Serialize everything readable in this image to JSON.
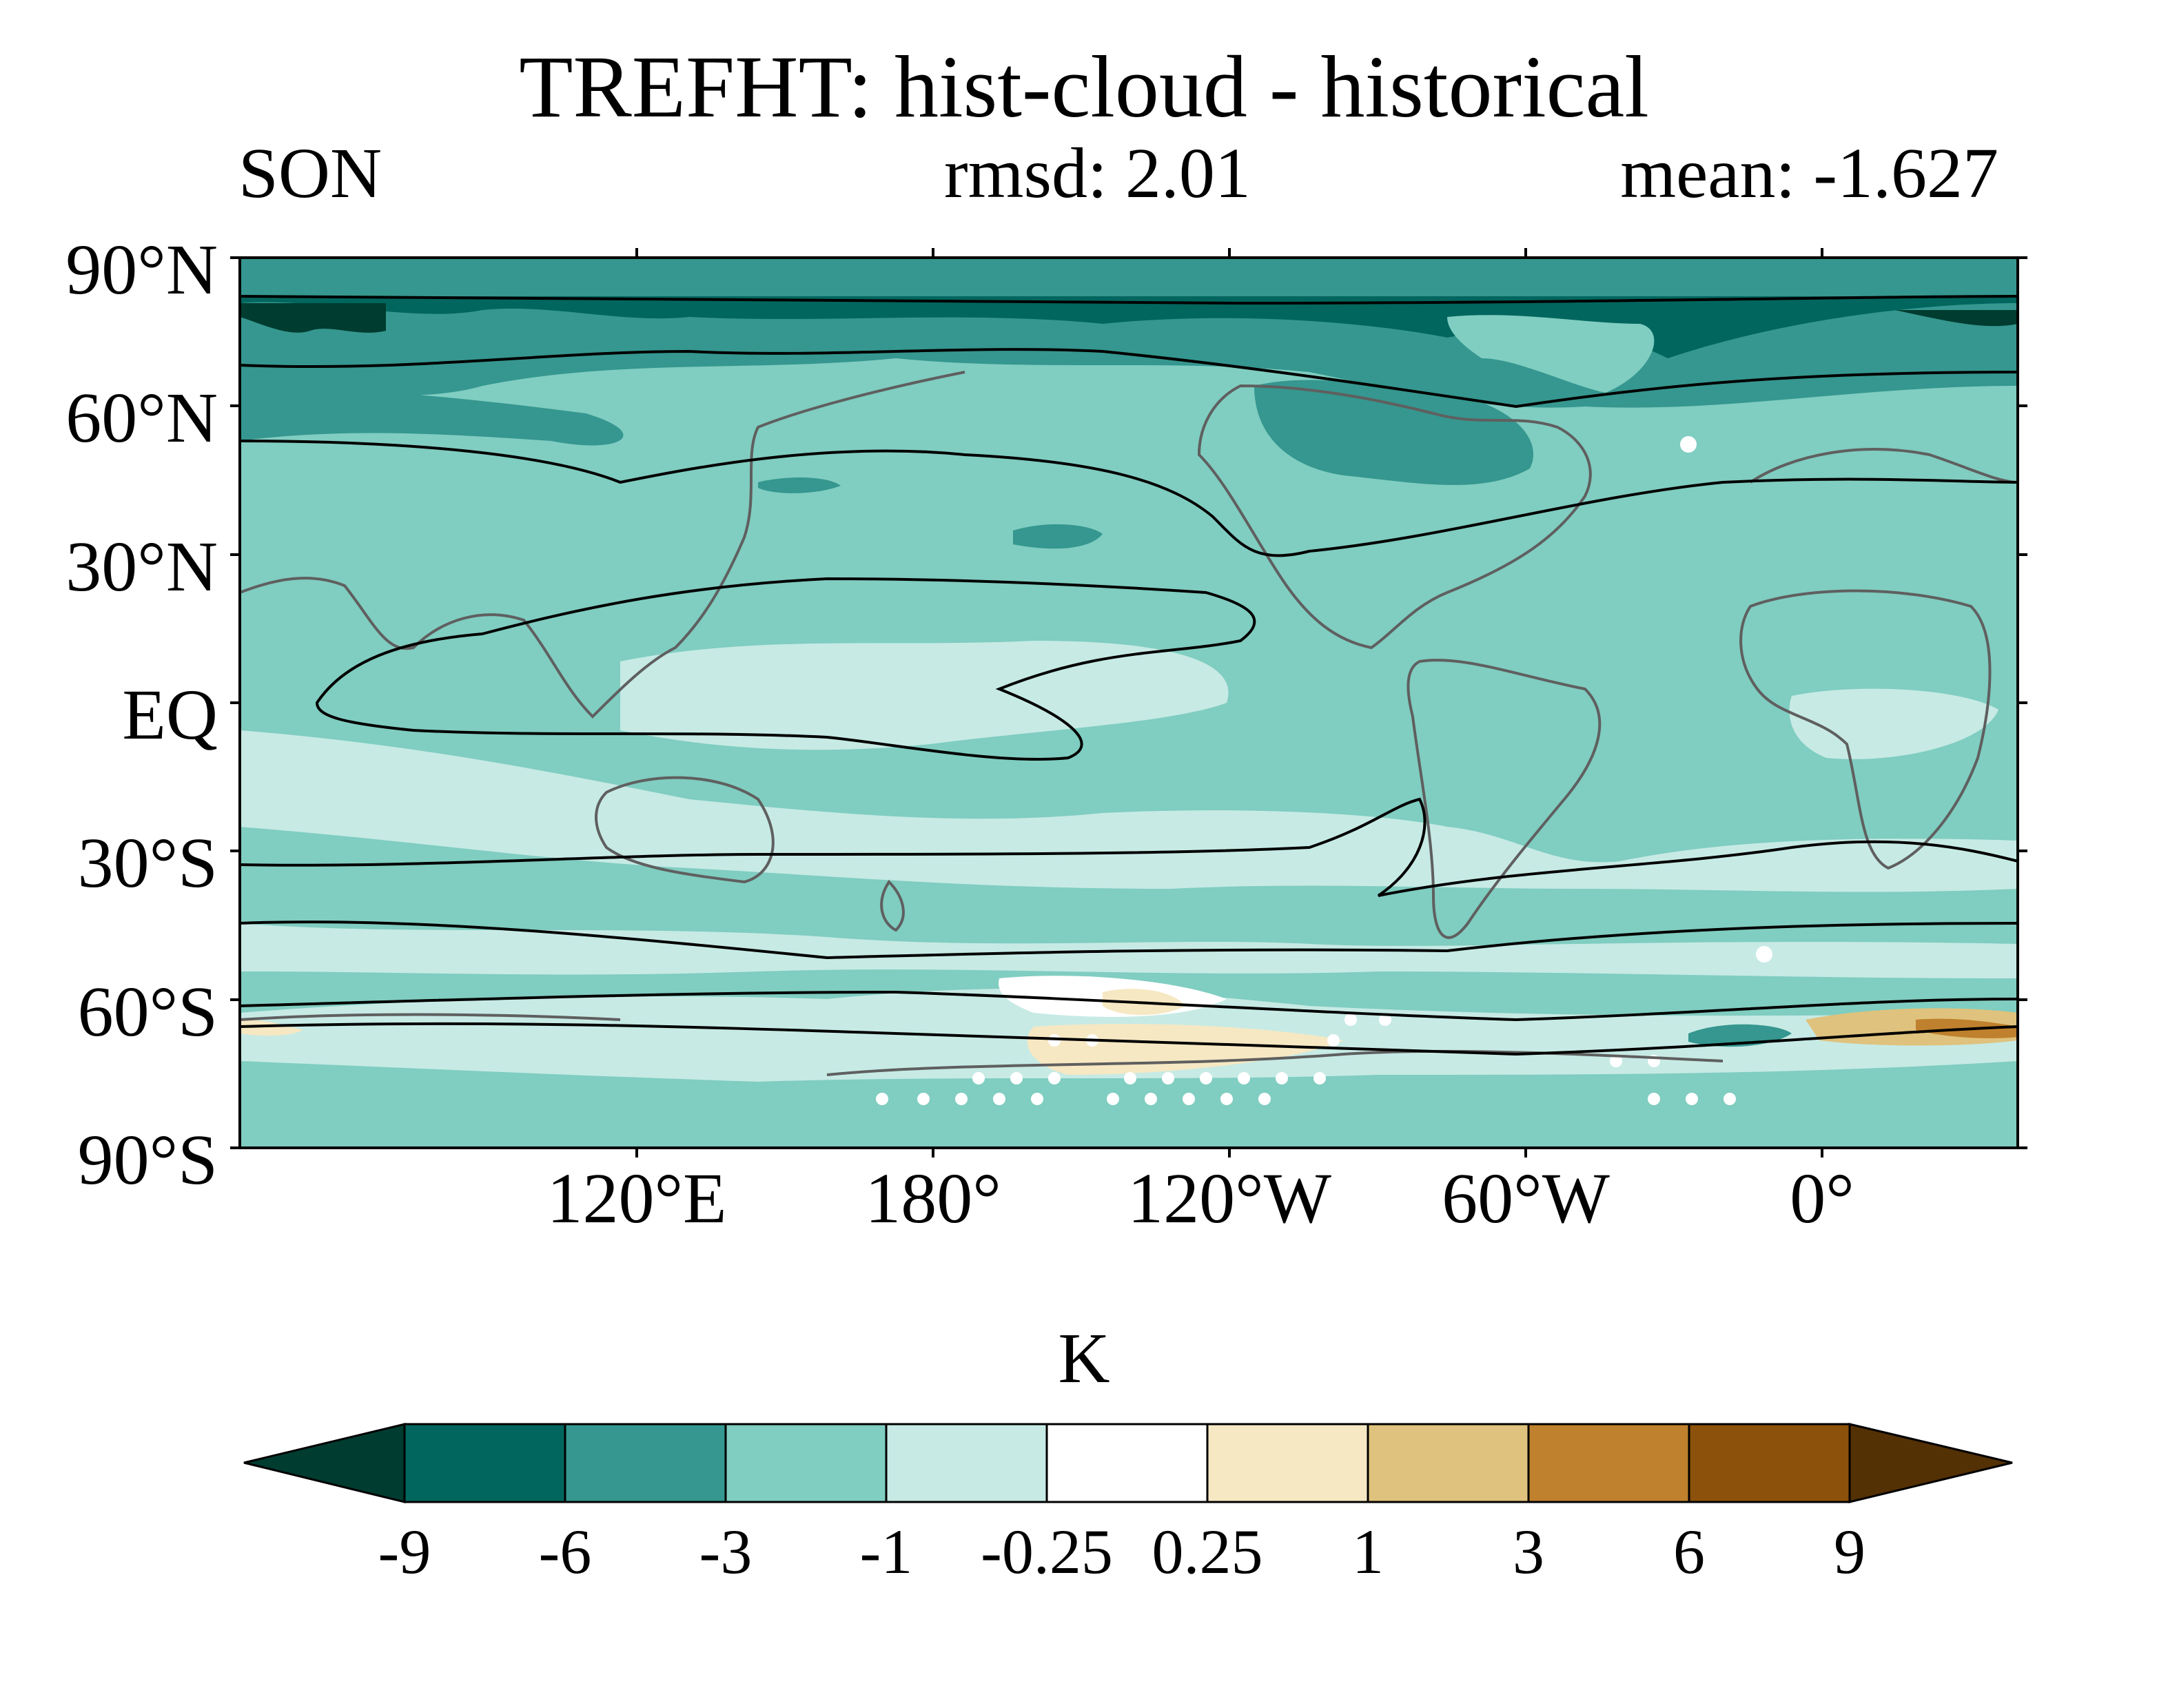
{
  "title": "TREFHT: hist-cloud - historical",
  "season": "SON",
  "rmsd": "rmsd: 2.01",
  "mean": "mean: -1.627",
  "map": {
    "lat_labels": [
      "90°N",
      "60°N",
      "30°N",
      "EQ",
      "30°S",
      "60°S",
      "90°S"
    ],
    "lon_labels": [
      "120°E",
      "180°",
      "120°W",
      "60°W",
      "0°"
    ],
    "coastline_color": "#5f5f5f",
    "contour_color": "#000000"
  },
  "colorbar": {
    "unit": "K",
    "levels": [
      "-9",
      "-6",
      "-3",
      "-1",
      "-0.25",
      "0.25",
      "1",
      "3",
      "6",
      "9"
    ],
    "colors": [
      "#003c30",
      "#01665e",
      "#35978f",
      "#80cdc1",
      "#c7eae5",
      "#ffffff",
      "#f6e8c3",
      "#dfc27d",
      "#bf812d",
      "#8c510a",
      "#543005"
    ]
  }
}
